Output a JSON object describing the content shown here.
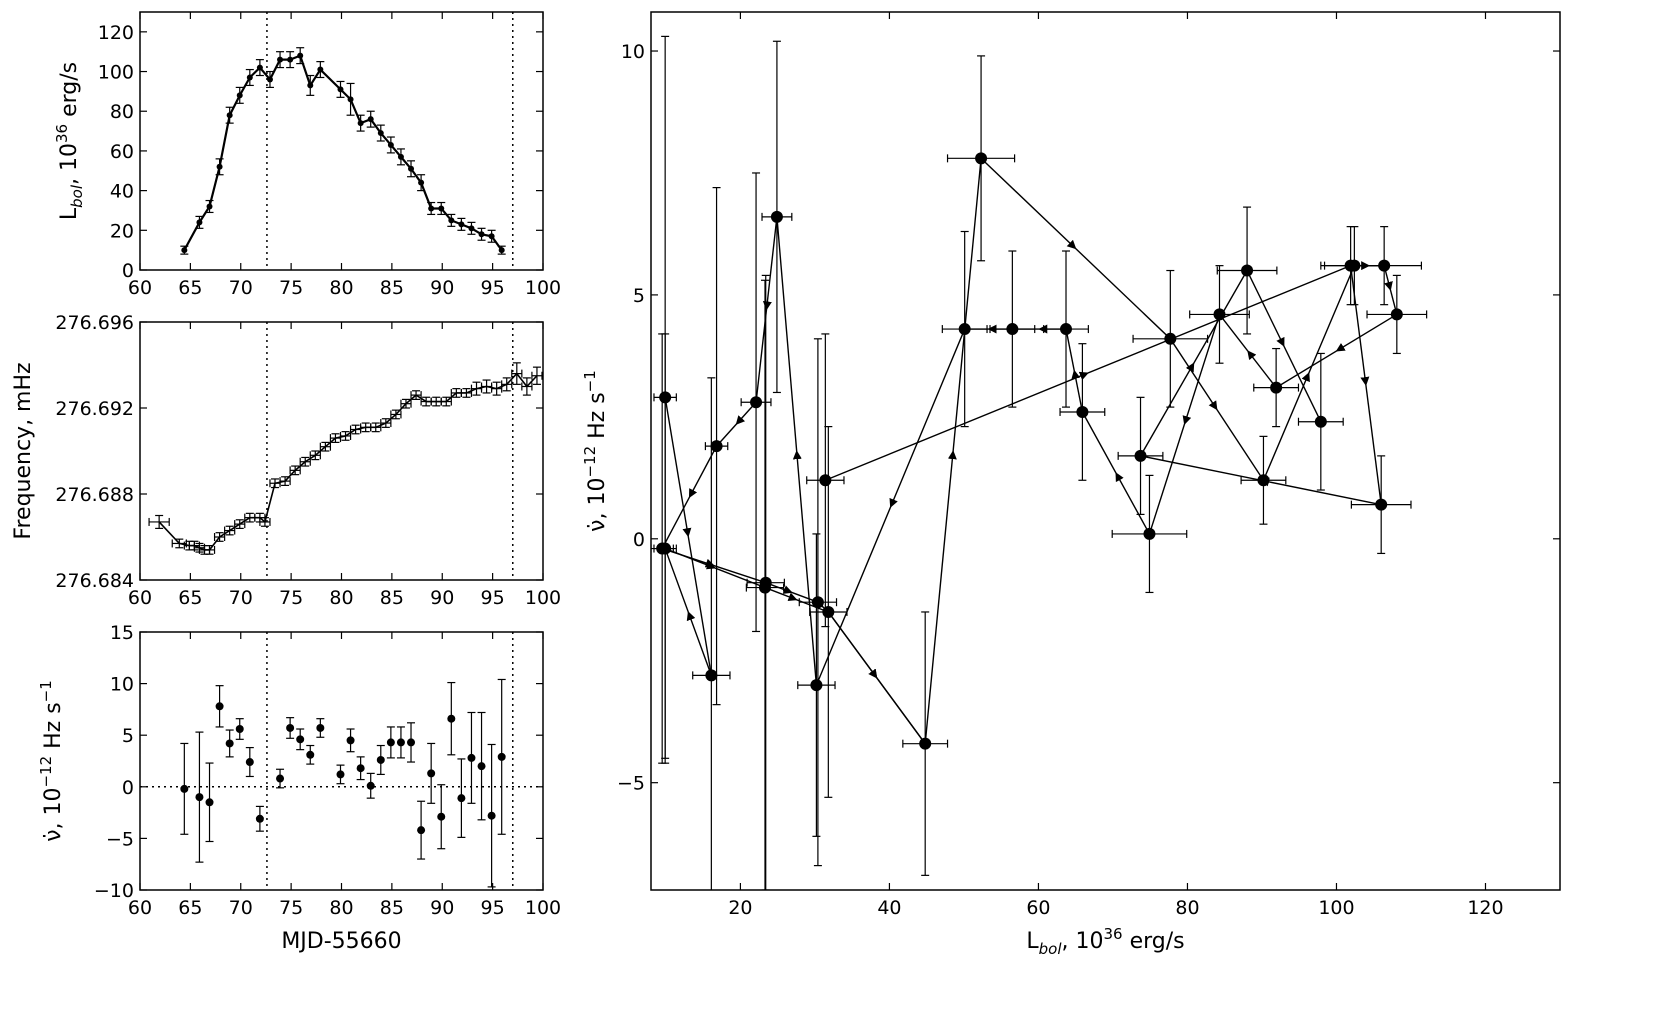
{
  "chart_data": [
    {
      "id": "lum",
      "type": "line",
      "xlabel": "MJD-55660",
      "ylabel": "L_bol, 10^36 erg/s",
      "xlim": [
        60,
        100
      ],
      "ylim": [
        0,
        130
      ],
      "xticks": [
        "60",
        "65",
        "70",
        "75",
        "80",
        "85",
        "90",
        "95",
        "100"
      ],
      "yticks": [
        "0",
        "20",
        "40",
        "60",
        "80",
        "100",
        "120"
      ],
      "vlines": [
        72.6,
        97
      ],
      "series": [
        {
          "x": [
            64.4,
            65.9,
            66.9,
            67.9,
            68.9,
            69.9,
            70.9,
            71.9,
            72.9,
            73.9,
            74.9,
            75.9,
            76.9,
            77.9,
            79.9,
            80.9,
            81.9,
            82.9,
            83.9,
            84.9,
            85.9,
            86.9,
            87.9,
            88.9,
            89.9,
            90.9,
            91.9,
            92.9,
            93.9,
            94.9,
            95.9
          ],
          "y": [
            10,
            24,
            32,
            52,
            78,
            88,
            97,
            102,
            96,
            106,
            106,
            108,
            93,
            101,
            91,
            86,
            74,
            76,
            69,
            63,
            57,
            51,
            44,
            31,
            31,
            25,
            23,
            21,
            18,
            17,
            10
          ],
          "yerr": [
            2,
            3,
            3,
            4,
            4,
            4,
            4,
            4,
            4,
            4,
            4,
            4,
            5,
            4,
            4,
            8,
            4,
            4,
            4,
            4,
            4,
            4,
            4,
            3,
            3,
            3,
            3,
            3,
            3,
            3,
            2
          ]
        }
      ]
    },
    {
      "id": "freq",
      "type": "line",
      "ylabel": "Frequency, mHz",
      "xlim": [
        60,
        100
      ],
      "ylim": [
        276.684,
        276.696
      ],
      "xticks": [
        "60",
        "65",
        "70",
        "75",
        "80",
        "85",
        "90",
        "95",
        "100"
      ],
      "yticks": [
        "276.684",
        "276.688",
        "276.692",
        "276.696"
      ],
      "vlines": [
        72.6,
        97
      ],
      "series": [
        {
          "x": [
            61.9,
            63.9,
            64.9,
            65.4,
            65.9,
            66.4,
            66.9,
            67.9,
            68.9,
            69.9,
            70.9,
            71.9,
            72.4,
            73.4,
            74.4,
            75.4,
            76.4,
            77.4,
            78.4,
            79.4,
            80.4,
            81.4,
            82.4,
            83.4,
            84.4,
            85.4,
            86.4,
            87.4,
            88.4,
            89.4,
            90.4,
            91.4,
            92.4,
            93.4,
            94.4,
            95.4,
            96.4,
            97.4,
            98.4,
            99.4
          ],
          "y": [
            276.6867,
            276.6857,
            276.6856,
            276.6856,
            276.6855,
            276.6854,
            276.6854,
            276.686,
            276.6863,
            276.6866,
            276.6869,
            276.6869,
            276.6867,
            276.6885,
            276.6886,
            276.6891,
            276.6895,
            276.6898,
            276.6902,
            276.6906,
            276.6907,
            276.691,
            276.6911,
            276.6911,
            276.6913,
            276.6917,
            276.6922,
            276.6926,
            276.6923,
            276.6923,
            276.6923,
            276.6927,
            276.6927,
            276.6929,
            276.693,
            276.6929,
            276.6931,
            276.6936,
            276.693,
            276.6935
          ],
          "xerr": [
            1,
            0.7,
            0.5,
            0.5,
            0.5,
            0.5,
            0.5,
            0.5,
            0.5,
            0.5,
            0.5,
            0.5,
            0.5,
            0.5,
            0.5,
            0.5,
            0.5,
            0.5,
            0.5,
            0.5,
            0.5,
            0.5,
            0.5,
            0.5,
            0.5,
            0.5,
            0.5,
            0.5,
            0.5,
            0.5,
            0.5,
            0.5,
            0.5,
            0.5,
            0.5,
            0.5,
            0.5,
            0.5,
            0.5,
            0.5
          ],
          "yerr": [
            0.0003,
            0.0002,
            0.0002,
            0.0002,
            0.0002,
            0.0002,
            0.0002,
            0.0002,
            0.0002,
            0.0002,
            0.0002,
            0.0002,
            0.0002,
            0.0002,
            0.0002,
            0.0002,
            0.0002,
            0.0002,
            0.0002,
            0.0002,
            0.0002,
            0.0002,
            0.0002,
            0.0002,
            0.0002,
            0.0002,
            0.0002,
            0.0002,
            0.0002,
            0.0002,
            0.0002,
            0.0002,
            0.0002,
            0.0003,
            0.0003,
            0.0003,
            0.0003,
            0.0005,
            0.0004,
            0.0004
          ]
        }
      ]
    },
    {
      "id": "nudot",
      "type": "scatter",
      "xlabel": "MJD-55660",
      "ylabel": "ν̇, 10^-12 Hz s^-1",
      "xlim": [
        60,
        100
      ],
      "ylim": [
        -10,
        15
      ],
      "xticks": [
        "60",
        "65",
        "70",
        "75",
        "80",
        "85",
        "90",
        "95",
        "100"
      ],
      "yticks": [
        "−10",
        "−5",
        "0",
        "5",
        "10",
        "15"
      ],
      "vlines": [
        72.6,
        97
      ],
      "hline": 0,
      "series": [
        {
          "x": [
            64.4,
            65.9,
            66.9,
            67.9,
            68.9,
            69.9,
            70.9,
            71.9,
            73.9,
            74.9,
            75.9,
            76.9,
            77.9,
            79.9,
            80.9,
            81.9,
            82.9,
            83.9,
            84.9,
            85.9,
            86.9,
            87.9,
            88.9,
            89.9,
            90.9,
            91.9,
            92.9,
            93.9,
            94.9,
            95.9
          ],
          "y": [
            -0.2,
            -1,
            -1.5,
            7.8,
            4.2,
            5.6,
            2.4,
            -3.1,
            0.8,
            5.7,
            4.6,
            3.1,
            5.7,
            1.2,
            4.5,
            1.8,
            0.1,
            2.6,
            4.3,
            4.3,
            4.3,
            -4.2,
            1.3,
            -2.9,
            6.6,
            -1.1,
            2.8,
            2.0,
            -2.8,
            2.9
          ],
          "yerr": [
            4.4,
            6.3,
            3.8,
            2,
            1.3,
            1,
            1.4,
            1.2,
            0.9,
            1,
            1,
            0.9,
            0.9,
            0.9,
            1.1,
            1.1,
            1.2,
            1.4,
            1.5,
            1.5,
            1.9,
            2.8,
            2.9,
            3.1,
            3.5,
            3.8,
            4.4,
            5.2,
            6.9,
            7.5
          ]
        }
      ]
    },
    {
      "id": "hyst",
      "type": "line",
      "xlabel": "L_bol, 10^36 erg/s",
      "ylabel": "ν̇, 10^-12 Hz s^-1",
      "xlim": [
        8,
        130
      ],
      "ylim": [
        -7.2,
        10.8
      ],
      "xticks": [
        "20",
        "40",
        "60",
        "80",
        "100",
        "120"
      ],
      "yticks": [
        "−5",
        "0",
        "5",
        "10"
      ],
      "series": [
        {
          "x": [
            9.9,
            16.1,
            9.9,
            23.3,
            31.8,
            44.8,
            52.3,
            77.7,
            90.2,
            102.4,
            106.4,
            108.1,
            91.9,
            84.3,
            74.9,
            65.9,
            63.7,
            56.5,
            50.1,
            30.2,
            24.9,
            22.1,
            16.8,
            9.5,
            23.4,
            30.4,
            31.4,
            101.9,
            106.0,
            73.7,
            88.0,
            97.9
          ],
          "y": [
            2.9,
            -2.8,
            -0.2,
            -1,
            -1.5,
            -4.2,
            7.8,
            4.1,
            1.2,
            5.6,
            5.6,
            4.6,
            3.1,
            4.6,
            0.1,
            2.6,
            4.3,
            4.3,
            4.3,
            -3.0,
            6.6,
            2.8,
            1.9,
            -0.2,
            -0.9,
            -1.3,
            1.2,
            5.6,
            0.7,
            1.7,
            5.5,
            2.4
          ],
          "xerr": [
            1.5,
            2.5,
            1.5,
            2.5,
            2.5,
            3,
            4.5,
            5,
            3,
            4,
            5,
            4,
            3,
            4,
            5,
            3,
            3,
            3,
            3,
            2.5,
            2,
            2,
            1.5,
            1.5,
            2.5,
            2.5,
            2.5,
            4,
            4,
            3,
            4,
            3
          ],
          "yerr": [
            7.4,
            6.1,
            4.4,
            6.3,
            3.8,
            2.7,
            2.1,
            1.4,
            0.9,
            0.8,
            0.8,
            0.8,
            0.8,
            1.0,
            1.2,
            1.4,
            1.6,
            1.6,
            2,
            3.1,
            3.6,
            4.7,
            5.3,
            4.4,
            6.3,
            5.4,
            3,
            0.8,
            1.0,
            1.2,
            1.3,
            1.4
          ]
        }
      ],
      "path_order": [
        0,
        1,
        2,
        3,
        4,
        5,
        6,
        7,
        8,
        9,
        10,
        11,
        12,
        13,
        14,
        15,
        16,
        17,
        18,
        19,
        20,
        21,
        22,
        23
      ],
      "path_extra": [
        [
          23,
          24
        ],
        [
          24,
          25
        ],
        [
          25,
          4
        ],
        [
          4,
          5
        ],
        [
          26,
          27
        ],
        [
          27,
          28
        ],
        [
          28,
          29
        ],
        [
          29,
          30
        ],
        [
          30,
          31
        ]
      ]
    }
  ]
}
